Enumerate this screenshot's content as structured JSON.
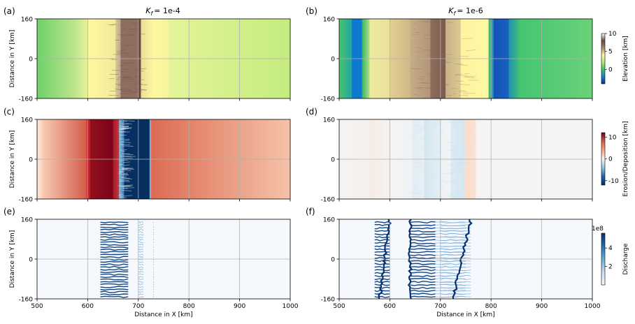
{
  "chart_data": {
    "type": "heatmap",
    "layout": "3 rows x 2 columns of map panels",
    "x_axis": {
      "label": "Distance in X [km]",
      "range": [
        500,
        1000
      ],
      "ticks": [
        500,
        600,
        700,
        800,
        900,
        1000
      ],
      "grid": true
    },
    "y_axis": {
      "label": "Distance in Y [km]",
      "range": [
        -160,
        160
      ],
      "ticks": [
        -160,
        0,
        160
      ],
      "grid": true
    },
    "columns": [
      {
        "title_prefix": "K",
        "title_sub": "f",
        "title_value": "= 1e-4"
      },
      {
        "title_prefix": "K",
        "title_sub": "f",
        "title_value": "= 1e-6"
      }
    ],
    "panels": [
      {
        "id": "a",
        "label": "(a)",
        "row": 0,
        "col": 0,
        "field": "elevation",
        "bands": [
          [
            500,
            570,
            "#6fd16a",
            "#b8e38a"
          ],
          [
            570,
            600,
            "#b8e38a",
            "#e8f29a"
          ],
          [
            600,
            655,
            "#fff7a0",
            "#f2ea98"
          ],
          [
            655,
            665,
            "#d8c896",
            "#bca890"
          ],
          [
            665,
            700,
            "#8e6e5e",
            "#8e6e5e"
          ],
          [
            700,
            705,
            "#6a4a3c",
            "#6a4a3c"
          ],
          [
            705,
            730,
            "#eadf96",
            "#fff7a0"
          ],
          [
            730,
            760,
            "#fff7a0",
            "#f3f59a"
          ],
          [
            760,
            1000,
            "#e4f49a",
            "#c4ec7e"
          ]
        ],
        "rough_bands": [
          [
            640,
            700,
            "#6e5246",
            0.45
          ]
        ]
      },
      {
        "id": "b",
        "label": "(b)",
        "row": 0,
        "col": 1,
        "field": "elevation",
        "bands": [
          [
            500,
            525,
            "#4cc56a",
            "#1fa3a8"
          ],
          [
            525,
            545,
            "#0f78d0",
            "#0f78d0"
          ],
          [
            545,
            560,
            "#38b46a",
            "#b6e384"
          ],
          [
            560,
            600,
            "#efeaa0",
            "#e9e09c"
          ],
          [
            600,
            640,
            "#e2cf92",
            "#cfb888"
          ],
          [
            640,
            680,
            "#c7ad86",
            "#b29478"
          ],
          [
            680,
            710,
            "#8e6e5e",
            "#7a5a4c"
          ],
          [
            710,
            740,
            "#c8b086",
            "#dccb92"
          ],
          [
            740,
            795,
            "#fff4a0",
            "#fff7a4"
          ],
          [
            795,
            805,
            "#46c26e",
            "#1a8fbf"
          ],
          [
            805,
            835,
            "#1552b8",
            "#1a62c0"
          ],
          [
            835,
            855,
            "#1f90b0",
            "#3fc078"
          ],
          [
            855,
            1000,
            "#45c570",
            "#6ad27a"
          ]
        ],
        "rough_bands": [
          [
            640,
            760,
            "#8a6a58",
            0.35
          ]
        ]
      },
      {
        "id": "c",
        "label": "(c)",
        "row": 1,
        "col": 0,
        "field": "erosion_deposition",
        "bands": [
          [
            500,
            510,
            "#fbe6da",
            "#f8d3bf"
          ],
          [
            510,
            598,
            "#f8cdb4",
            "#d45a48"
          ],
          [
            598,
            605,
            "#c22c2f",
            "#b41f2b"
          ],
          [
            605,
            650,
            "#92101d",
            "#7a0319"
          ],
          [
            650,
            662,
            "#a8182a",
            "#c43a3f"
          ],
          [
            662,
            672,
            "#8fc2de",
            "#2e6fae"
          ],
          [
            672,
            722,
            "#053061",
            "#062f5f"
          ],
          [
            722,
            725,
            "#5a8fc0",
            "#a8cde2"
          ],
          [
            725,
            730,
            "#e0705a",
            "#d86552"
          ],
          [
            730,
            1000,
            "#dc6d55",
            "#f5c3a8"
          ]
        ],
        "rough_bands": [
          [
            660,
            672,
            "#ffffff",
            0.5
          ]
        ]
      },
      {
        "id": "d",
        "label": "(d)",
        "row": 1,
        "col": 1,
        "field": "erosion_deposition",
        "bands": [
          [
            500,
            560,
            "#f5f3f2",
            "#f6f0ec"
          ],
          [
            560,
            600,
            "#f8ebe4",
            "#f4f4f4"
          ],
          [
            600,
            645,
            "#f4f4f4",
            "#eef2f5"
          ],
          [
            645,
            668,
            "#e2ecf4",
            "#e8f0f6"
          ],
          [
            668,
            700,
            "#d4e6f1",
            "#e6eef4"
          ],
          [
            700,
            720,
            "#eef2f5",
            "#f2f4f5"
          ],
          [
            720,
            748,
            "#dcebf4",
            "#d4e6f1"
          ],
          [
            748,
            770,
            "#fbdcc8",
            "#f9e3d6"
          ],
          [
            770,
            1000,
            "#f5f4f3",
            "#f4f4f4"
          ]
        ],
        "rough_bands": [
          [
            640,
            750,
            "#c6dcec",
            0.35
          ]
        ]
      },
      {
        "id": "e",
        "label": "(e)",
        "row": 2,
        "col": 0,
        "field": "discharge",
        "bands": [
          [
            500,
            1000,
            "#f5f9fe",
            "#f5f9fe"
          ]
        ],
        "channel_columns": [
          625,
          700,
          730
        ],
        "channel_end_x": [
          680,
          710,
          730
        ],
        "channel_spacing_km": 10
      },
      {
        "id": "f",
        "label": "(f)",
        "row": 2,
        "col": 1,
        "field": "discharge",
        "bands": [
          [
            500,
            1000,
            "#f5f9fe",
            "#f5f9fe"
          ]
        ],
        "channel_columns": [
          600,
          640,
          690,
          760
        ],
        "channel_end_x": [
          570,
          690,
          750,
          700
        ],
        "channel_spacing_km": 12,
        "trunks": [
          [
            580,
            600
          ],
          [
            640,
            640
          ],
          [
            725,
            760
          ]
        ]
      }
    ],
    "colorbars": [
      {
        "label": "Elevation [km]",
        "ticks": [
          10,
          5,
          0
        ],
        "range": [
          -4,
          10
        ],
        "stops": [
          "#1a2d8c",
          "#1a7fd0",
          "#3fbf6a",
          "#b6e384",
          "#fff7a0",
          "#a38a70",
          "#6a4a3c",
          "#ffffff"
        ]
      },
      {
        "label": "Erosion/Deposition [km]",
        "ticks": [
          10,
          0,
          -10
        ],
        "range": [
          -12,
          12
        ],
        "stops": [
          "#053061",
          "#2166ac",
          "#92c5de",
          "#f7f7f7",
          "#f4a582",
          "#d6604d",
          "#67001f"
        ]
      },
      {
        "label": "Discharge",
        "ticks": [
          4,
          2
        ],
        "range": [
          0,
          5.6
        ],
        "scale_label": "1e8",
        "stops": [
          "#f7fbff",
          "#c6dbef",
          "#6baed6",
          "#2171b5",
          "#08306b"
        ]
      }
    ]
  }
}
